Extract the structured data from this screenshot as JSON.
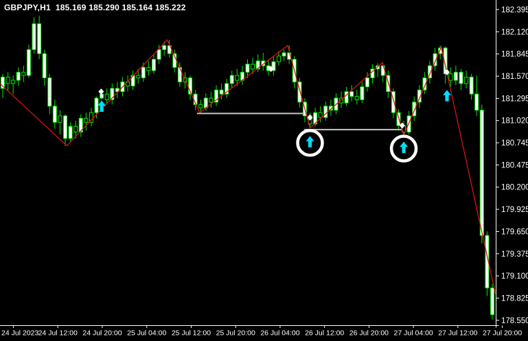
{
  "header": {
    "title": "GBPJPY,H1  185.169 185.290 185.164 185.222",
    "symbol": "GBPJPY",
    "period": "H1",
    "quote_open": "185.169",
    "quote_high": "185.290",
    "quote_low": "185.164",
    "quote_close": "185.222"
  },
  "colors": {
    "background": "#000000",
    "frame": "#ffffff",
    "text": "#ffffff",
    "bar_outline": "#00ee00",
    "bull_body": "#ffffff",
    "bear_body": "#000000",
    "zigzag": "#dd1111",
    "support_line": "#c8c8c8",
    "arrow": "#00dcff",
    "signal_circle": "#ffffff",
    "diamond": "#ffffff"
  },
  "chart_data": {
    "type": "candlestick",
    "title": "GBPJPY H1 candlestick chart with zigzag, support lines and buy-signal arrows",
    "symbol": "GBPJPY",
    "period": "H1",
    "grid": false,
    "legend": false,
    "ylim": [
      178.49,
      182.51
    ],
    "y_axis_labels": [
      "182.395",
      "182.120",
      "181.845",
      "181.570",
      "181.295",
      "181.020",
      "180.745",
      "180.475",
      "180.200",
      "179.925",
      "179.650",
      "179.375",
      "179.100",
      "178.825",
      "178.550"
    ],
    "x_axis_labels": [
      "24 Jul 2023",
      "24 Jul 12:00",
      "24 Jul 20:00",
      "25 Jul 04:00",
      "25 Jul 12:00",
      "25 Jul 20:00",
      "26 Jul 04:00",
      "26 Jul 12:00",
      "26 Jul 20:00",
      "27 Jul 04:00",
      "27 Jul 12:00",
      "27 Jul 20:00"
    ],
    "candles": [
      [
        181.42,
        181.6,
        181.3,
        181.56,
        "w"
      ],
      [
        181.56,
        181.62,
        181.38,
        181.48,
        "b"
      ],
      [
        181.48,
        181.58,
        181.35,
        181.52,
        "b"
      ],
      [
        181.52,
        181.68,
        181.45,
        181.62,
        "w"
      ],
      [
        181.62,
        181.7,
        181.5,
        181.58,
        "b"
      ],
      [
        181.58,
        181.96,
        181.55,
        181.9,
        "w"
      ],
      [
        181.9,
        182.3,
        181.85,
        182.22,
        "w"
      ],
      [
        182.22,
        182.32,
        181.78,
        181.85,
        "w"
      ],
      [
        181.85,
        181.9,
        181.45,
        181.55,
        "w"
      ],
      [
        181.55,
        181.6,
        181.1,
        181.2,
        "w"
      ],
      [
        181.2,
        181.28,
        180.92,
        181.0,
        "w"
      ],
      [
        181.0,
        181.15,
        180.85,
        181.08,
        "b"
      ],
      [
        181.08,
        181.1,
        180.71,
        180.8,
        "w"
      ],
      [
        180.8,
        181.0,
        180.75,
        180.95,
        "w"
      ],
      [
        180.95,
        181.02,
        180.8,
        180.88,
        "b"
      ],
      [
        180.88,
        181.1,
        180.82,
        181.05,
        "w"
      ],
      [
        181.05,
        181.12,
        180.9,
        181.0,
        "b"
      ],
      [
        181.0,
        181.18,
        180.95,
        181.12,
        "b"
      ],
      [
        181.12,
        181.32,
        181.05,
        181.3,
        "w"
      ],
      [
        181.3,
        181.38,
        181.28,
        181.35,
        "w"
      ],
      [
        181.35,
        181.42,
        181.22,
        181.28,
        "b"
      ],
      [
        181.28,
        181.48,
        181.22,
        181.42,
        "w"
      ],
      [
        181.42,
        181.5,
        181.3,
        181.38,
        "w"
      ],
      [
        181.38,
        181.56,
        181.32,
        181.5,
        "w"
      ],
      [
        181.5,
        181.58,
        181.38,
        181.45,
        "b"
      ],
      [
        181.45,
        181.64,
        181.4,
        181.58,
        "w"
      ],
      [
        181.58,
        181.66,
        181.48,
        181.55,
        "b"
      ],
      [
        181.55,
        181.74,
        181.5,
        181.68,
        "w"
      ],
      [
        181.68,
        181.76,
        181.58,
        181.64,
        "b"
      ],
      [
        181.64,
        181.84,
        181.6,
        181.78,
        "w"
      ],
      [
        181.78,
        181.96,
        181.72,
        181.9,
        "w"
      ],
      [
        181.9,
        182.0,
        181.82,
        181.95,
        "w"
      ],
      [
        181.95,
        182.02,
        181.8,
        181.85,
        "w"
      ],
      [
        181.85,
        181.9,
        181.62,
        181.68,
        "w"
      ],
      [
        181.68,
        181.74,
        181.44,
        181.5,
        "w"
      ],
      [
        181.5,
        181.62,
        181.42,
        181.55,
        "b"
      ],
      [
        181.55,
        181.58,
        181.28,
        181.35,
        "w"
      ],
      [
        181.35,
        181.4,
        181.15,
        181.22,
        "w"
      ],
      [
        181.22,
        181.28,
        181.12,
        181.18,
        "b"
      ],
      [
        181.18,
        181.36,
        181.14,
        181.3,
        "w"
      ],
      [
        181.3,
        181.38,
        181.18,
        181.25,
        "b"
      ],
      [
        181.25,
        181.46,
        181.2,
        181.4,
        "w"
      ],
      [
        181.4,
        181.48,
        181.28,
        181.35,
        "w"
      ],
      [
        181.35,
        181.54,
        181.3,
        181.48,
        "w"
      ],
      [
        181.48,
        181.64,
        181.42,
        181.58,
        "w"
      ],
      [
        181.58,
        181.66,
        181.45,
        181.52,
        "b"
      ],
      [
        181.52,
        181.7,
        181.46,
        181.62,
        "w"
      ],
      [
        181.62,
        181.78,
        181.55,
        181.72,
        "w"
      ],
      [
        181.72,
        181.8,
        181.6,
        181.66,
        "b"
      ],
      [
        181.66,
        181.84,
        181.62,
        181.76,
        "w"
      ],
      [
        181.76,
        181.86,
        181.64,
        181.7,
        "w"
      ],
      [
        181.7,
        181.78,
        181.58,
        181.64,
        "w"
      ],
      [
        181.64,
        181.82,
        181.58,
        181.75,
        "w"
      ],
      [
        181.75,
        181.88,
        181.7,
        181.82,
        "b"
      ],
      [
        181.82,
        181.9,
        181.76,
        181.86,
        "w"
      ],
      [
        181.86,
        181.95,
        181.72,
        181.78,
        "w"
      ],
      [
        181.78,
        181.82,
        181.42,
        181.5,
        "w"
      ],
      [
        181.5,
        181.55,
        181.18,
        181.25,
        "w"
      ],
      [
        181.25,
        181.3,
        181.0,
        181.08,
        "w"
      ],
      [
        181.08,
        181.12,
        180.93,
        180.98,
        "b"
      ],
      [
        180.98,
        181.18,
        180.95,
        181.12,
        "w"
      ],
      [
        181.12,
        181.2,
        181.0,
        181.06,
        "b"
      ],
      [
        181.06,
        181.26,
        181.02,
        181.2,
        "w"
      ],
      [
        181.2,
        181.28,
        181.08,
        181.15,
        "w"
      ],
      [
        181.15,
        181.36,
        181.1,
        181.3,
        "w"
      ],
      [
        181.3,
        181.38,
        181.18,
        181.24,
        "b"
      ],
      [
        181.24,
        181.44,
        181.2,
        181.38,
        "w"
      ],
      [
        181.38,
        181.46,
        181.26,
        181.32,
        "w"
      ],
      [
        181.32,
        181.4,
        181.22,
        181.28,
        "b"
      ],
      [
        181.28,
        181.5,
        181.24,
        181.44,
        "w"
      ],
      [
        181.44,
        181.62,
        181.38,
        181.55,
        "w"
      ],
      [
        181.55,
        181.72,
        181.48,
        181.66,
        "w"
      ],
      [
        181.66,
        181.73,
        181.56,
        181.7,
        "w"
      ],
      [
        181.7,
        181.74,
        181.5,
        181.58,
        "w"
      ],
      [
        181.58,
        181.64,
        181.3,
        181.38,
        "w"
      ],
      [
        181.38,
        181.42,
        181.05,
        181.12,
        "w"
      ],
      [
        181.12,
        181.16,
        180.9,
        180.96,
        "w"
      ],
      [
        180.96,
        181.02,
        180.84,
        180.88,
        "b"
      ],
      [
        180.88,
        181.14,
        180.85,
        181.08,
        "w"
      ],
      [
        181.08,
        181.32,
        181.02,
        181.25,
        "w"
      ],
      [
        181.25,
        181.46,
        181.18,
        181.4,
        "w"
      ],
      [
        181.4,
        181.62,
        181.35,
        181.55,
        "w"
      ],
      [
        181.55,
        181.76,
        181.48,
        181.7,
        "w"
      ],
      [
        181.7,
        181.92,
        181.64,
        181.85,
        "w"
      ],
      [
        181.85,
        181.95,
        181.78,
        181.92,
        "w"
      ],
      [
        181.92,
        181.94,
        181.48,
        181.6,
        "w"
      ],
      [
        181.6,
        181.68,
        181.44,
        181.52,
        "b"
      ],
      [
        181.52,
        181.7,
        181.46,
        181.62,
        "w"
      ],
      [
        181.62,
        181.66,
        181.4,
        181.48,
        "w"
      ],
      [
        181.48,
        181.64,
        181.42,
        181.56,
        "b"
      ],
      [
        181.56,
        181.6,
        181.28,
        181.35,
        "w"
      ],
      [
        181.35,
        181.58,
        181.08,
        181.15,
        "w"
      ],
      [
        181.15,
        181.22,
        179.5,
        179.6,
        "w"
      ],
      [
        179.6,
        179.65,
        178.85,
        178.95,
        "w"
      ],
      [
        178.95,
        179.0,
        178.56,
        178.62,
        "w"
      ]
    ],
    "zigzag_points": [
      {
        "i": -0.53,
        "price": 181.48
      },
      {
        "i": 12.3,
        "price": 180.71
      },
      {
        "i": 31.6,
        "price": 182.02
      },
      {
        "i": 37.8,
        "price": 181.12
      },
      {
        "i": 54.7,
        "price": 181.95
      },
      {
        "i": 59.0,
        "price": 180.93
      },
      {
        "i": 72.9,
        "price": 181.74
      },
      {
        "i": 77.0,
        "price": 180.84
      },
      {
        "i": 84.2,
        "price": 181.93
      },
      {
        "i": 94.6,
        "price": 178.88
      }
    ],
    "support_lines": [
      {
        "i1": 37.3,
        "i2": 57.9,
        "price": 181.11
      },
      {
        "i1": 57.9,
        "i2": 76.7,
        "price": 180.91
      }
    ],
    "buy_arrows": [
      {
        "i": 19.0,
        "price": 181.27,
        "circled": false
      },
      {
        "i": 59.0,
        "price": 180.83,
        "circled": true
      },
      {
        "i": 77.0,
        "price": 180.76,
        "circled": true
      },
      {
        "i": 85.3,
        "price": 181.4,
        "circled": false
      }
    ],
    "diamond_markers": [
      {
        "i": 18.9,
        "price": 181.38
      },
      {
        "i": 51.5,
        "price": 181.66
      },
      {
        "i": 59.0,
        "price": 181.06
      },
      {
        "i": 76.7,
        "price": 180.96
      },
      {
        "i": 85.3,
        "price": 181.62
      }
    ]
  }
}
